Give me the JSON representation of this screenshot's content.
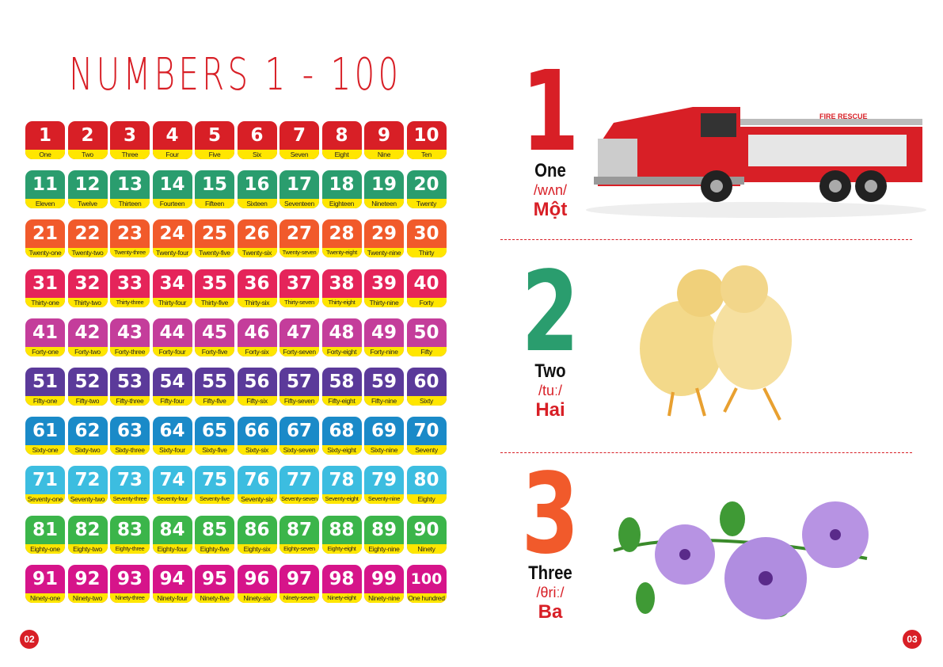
{
  "title": "NUMBERS 1 - 100",
  "row_colors": [
    "#d81f26",
    "#2a9d6e",
    "#f15a2b",
    "#e5245a",
    "#c43d9b",
    "#5b3a9a",
    "#1a8ac8",
    "#3cbde0",
    "#3bb54a",
    "#d6148a"
  ],
  "band_color": "#ffe600",
  "words": [
    "One",
    "Two",
    "Three",
    "Four",
    "Five",
    "Six",
    "Seven",
    "Eight",
    "Nine",
    "Ten",
    "Eleven",
    "Twelve",
    "Thirteen",
    "Fourteen",
    "Fifteen",
    "Sixteen",
    "Seventeen",
    "Eighteen",
    "Nineteen",
    "Twenty",
    "Twenty-one",
    "Twenty-two",
    "Twenty-three",
    "Twenty-four",
    "Twenty-five",
    "Twenty-six",
    "Twenty-seven",
    "Twenty-eight",
    "Twenty-nine",
    "Thirty",
    "Thirty-one",
    "Thirty-two",
    "Thirty-three",
    "Thirty-four",
    "Thirty-five",
    "Thirty-six",
    "Thirty-seven",
    "Thirty-eight",
    "Thirty-nine",
    "Forty",
    "Forty-one",
    "Forty-two",
    "Forty-three",
    "Forty-four",
    "Forty-five",
    "Forty-six",
    "Forty-seven",
    "Forty-eight",
    "Forty-nine",
    "Fifty",
    "Fifty-one",
    "Fifty-two",
    "Fifty-three",
    "Fifty-four",
    "Fifty-five",
    "Fifty-six",
    "Fifty-seven",
    "Fifty-eight",
    "Fifty-nine",
    "Sixty",
    "Sixty-one",
    "Sixty-two",
    "Sixty-three",
    "Sixty-four",
    "Sixty-five",
    "Sixty-six",
    "Sixty-seven",
    "Sixty-eight",
    "Sixty-nine",
    "Seventy",
    "Seventy-one",
    "Seventy-two",
    "Seventy-three",
    "Seventy-four",
    "Seventy-five",
    "Seventy-six",
    "Seventy-seven",
    "Seventy-eight",
    "Seventy-nine",
    "Eighty",
    "Eighty-one",
    "Eighty-two",
    "Eighty-three",
    "Eighty-four",
    "Eighty-five",
    "Eighty-six",
    "Eighty-seven",
    "Eighty-eight",
    "Eighty-nine",
    "Ninety",
    "Ninety-one",
    "Ninety-two",
    "Ninety-three",
    "Ninety-four",
    "Ninety-five",
    "Ninety-six",
    "Ninety-seven",
    "Ninety-eight",
    "Ninety-nine",
    "One hundred"
  ],
  "entries": [
    {
      "num": "1",
      "en": "One",
      "ipa": "/wʌn/",
      "vi": "Một",
      "color": "#d81f26",
      "image": "fire-truck",
      "truck_text": "FIRE RESCUE"
    },
    {
      "num": "2",
      "en": "Two",
      "ipa": "/tuː/",
      "vi": "Hai",
      "color": "#2a9d6e",
      "image": "two-chicks"
    },
    {
      "num": "3",
      "en": "Three",
      "ipa": "/θriː/",
      "vi": "Ba",
      "color": "#f15a2b",
      "image": "three-flowers"
    }
  ],
  "page_left": "02",
  "page_right": "03"
}
